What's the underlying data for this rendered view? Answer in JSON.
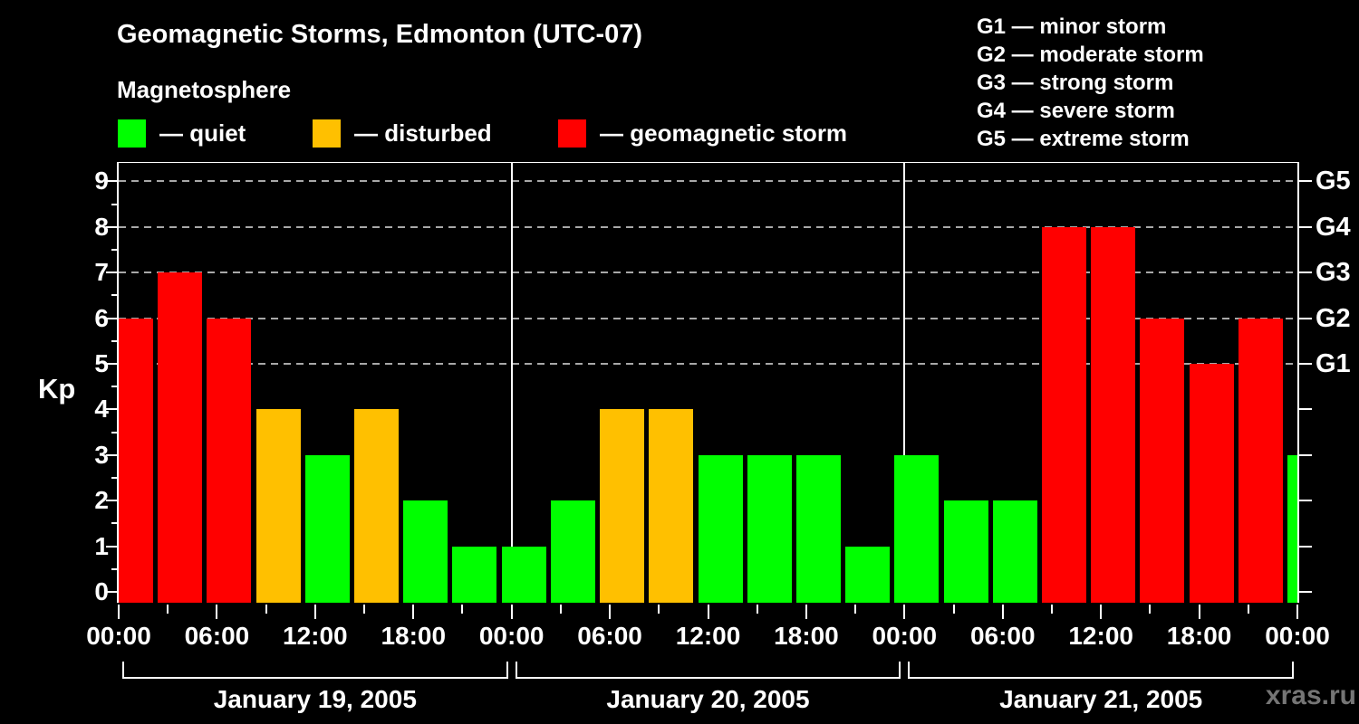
{
  "header": {
    "title": "Geomagnetic Storms, Edmonton (UTC-07)",
    "subtitle": "Magnetosphere"
  },
  "legend": {
    "items": [
      {
        "key": "quiet",
        "label": "— quiet",
        "color": "#00ff00"
      },
      {
        "key": "disturbed",
        "label": "— disturbed",
        "color": "#ffc000"
      },
      {
        "key": "storm",
        "label": "— geomagnetic storm",
        "color": "#ff0000"
      }
    ]
  },
  "storm_scale_legend": {
    "items": [
      "G1 — minor storm",
      "G2 — moderate storm",
      "G3 — strong storm",
      "G4 — severe storm",
      "G5 — extreme storm"
    ]
  },
  "chart_data": {
    "type": "bar",
    "title": "Geomagnetic Storms, Edmonton (UTC-07)",
    "ylabel": "Kp",
    "ylim": [
      0,
      9
    ],
    "grid": "dashed horizontal lines at Kp 5-9 (G1-G5 levels)",
    "interval_hours": 3,
    "days": [
      {
        "date": "January 19, 2005",
        "values": [
          6,
          7,
          6,
          4,
          3,
          4,
          2,
          1
        ]
      },
      {
        "date": "January 20, 2005",
        "values": [
          1,
          2,
          4,
          4,
          3,
          3,
          3,
          1
        ]
      },
      {
        "date": "January 21, 2005",
        "values": [
          3,
          2,
          2,
          8,
          8,
          6,
          5,
          6
        ]
      }
    ],
    "next_day_partial_value": 3,
    "x_tick_labels_cycle": [
      "00:00",
      "06:00",
      "12:00",
      "18:00"
    ],
    "x_final_tick_label": "00:00",
    "right_axis": [
      {
        "label": "G1",
        "kp": 5
      },
      {
        "label": "G2",
        "kp": 6
      },
      {
        "label": "G3",
        "kp": 7
      },
      {
        "label": "G4",
        "kp": 8
      },
      {
        "label": "G5",
        "kp": 9
      }
    ],
    "colors": {
      "quiet": "#00ff00",
      "disturbed": "#ffc000",
      "storm": "#ff0000"
    },
    "color_rule": {
      "quiet_max_kp": 3,
      "disturbed_kp": 4,
      "storm_min_kp": 5
    },
    "gridlines_at_kp": [
      5,
      6,
      7,
      8,
      9
    ],
    "legend_position": "top"
  },
  "watermark": "xras.ru"
}
